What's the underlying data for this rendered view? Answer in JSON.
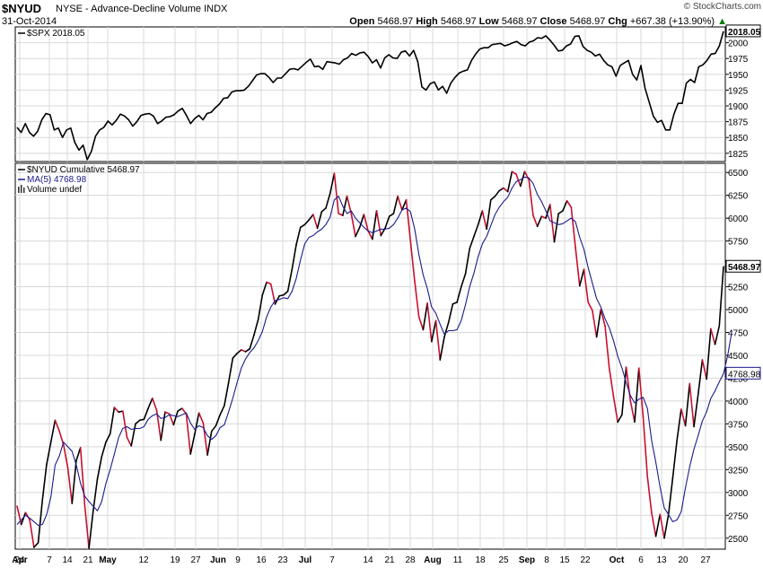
{
  "header": {
    "symbol": "$NYUD",
    "description": "NYSE - Advance-Decline Volume INDX",
    "date": "31-Oct-2014",
    "open_label": "Open",
    "open": "5468.97",
    "high_label": "High",
    "high": "5468.97",
    "low_label": "Low",
    "low": "5468.97",
    "close_label": "Close",
    "close": "5468.97",
    "chg_label": "Chg",
    "chg": "+667.38 (+13.90%)",
    "chg_arrow": "▲",
    "brand": "© StockCharts.com"
  },
  "colors": {
    "price_line": "#000000",
    "decline_segment": "#c8102e",
    "ma_line": "#1a1a8c",
    "grid": "#d8d8d8",
    "chg_up": "#008000"
  },
  "chart_data": [
    {
      "type": "line",
      "panel": "upper",
      "legend": [
        "$SPX 2018.05"
      ],
      "last_value_label": "2018.05",
      "ylim": [
        1812,
        2025
      ],
      "yticks": [
        1825,
        1850,
        1875,
        1900,
        1925,
        1950,
        1975,
        2000
      ],
      "x_ticks": [
        "24",
        "Apr",
        "7",
        "14",
        "21",
        "May",
        "12",
        "19",
        "27",
        "Jun",
        "9",
        "16",
        "23",
        "Jul",
        "7",
        "14",
        "21",
        "28",
        "Aug",
        "11",
        "18",
        "25",
        "Sep",
        "8",
        "15",
        "22",
        "Oct",
        "6",
        "13",
        "20",
        "27"
      ],
      "series": [
        {
          "name": "$SPX",
          "values": [
            1866,
            1858,
            1872,
            1858,
            1852,
            1860,
            1878,
            1888,
            1886,
            1862,
            1865,
            1850,
            1862,
            1865,
            1842,
            1830,
            1838,
            1815,
            1828,
            1852,
            1862,
            1866,
            1876,
            1870,
            1877,
            1887,
            1884,
            1878,
            1868,
            1875,
            1885,
            1887,
            1888,
            1884,
            1872,
            1876,
            1882,
            1883,
            1886,
            1892,
            1896,
            1885,
            1872,
            1880,
            1885,
            1878,
            1888,
            1890,
            1897,
            1903,
            1912,
            1913,
            1922,
            1924,
            1924,
            1925,
            1931,
            1940,
            1949,
            1951,
            1951,
            1945,
            1937,
            1944,
            1944,
            1951,
            1958,
            1959,
            1957,
            1963,
            1969,
            1974,
            1962,
            1963,
            1958,
            1970,
            1969,
            1968,
            1966,
            1973,
            1976,
            1983,
            1980,
            1984,
            1985,
            1978,
            1968,
            1973,
            1960,
            1976,
            1981,
            1976,
            1975,
            1985,
            1987,
            1979,
            1988,
            1970,
            1930,
            1925,
            1935,
            1938,
            1925,
            1931,
            1920,
            1936,
            1945,
            1952,
            1955,
            1957,
            1972,
            1982,
            1990,
            1992,
            1992,
            1997,
            1998,
            1999,
            1995,
            1997,
            2000,
            2002,
            1997,
            1995,
            2001,
            2003,
            2008,
            2007,
            2011,
            2004,
            1996,
            1987,
            1988,
            1995,
            1998,
            2010,
            2011,
            1994,
            1988,
            1985,
            1979,
            1982,
            1972,
            1965,
            1962,
            1947,
            1964,
            1968,
            1972,
            1950,
            1941,
            1964,
            1928,
            1906,
            1884,
            1874,
            1877,
            1862,
            1862,
            1887,
            1904,
            1904,
            1936,
            1942,
            1937,
            1962,
            1965,
            1972,
            1982,
            1983,
            1995,
            2018
          ]
        }
      ]
    },
    {
      "type": "line",
      "panel": "lower",
      "legend": [
        "$NYUD Cumulative 5468.97",
        "MA(5) 4768.98",
        "Volume undef"
      ],
      "last_value_label": "5468.97",
      "ma_value_label": "4768.98",
      "ylim": [
        2380,
        6600
      ],
      "yticks": [
        2500,
        2750,
        3000,
        3250,
        3500,
        3750,
        4000,
        4250,
        4500,
        4750,
        5000,
        5250,
        5500,
        5750,
        6000,
        6250,
        6500
      ],
      "x_ticks": [
        "24",
        "Apr",
        "7",
        "14",
        "21",
        "May",
        "12",
        "19",
        "27",
        "Jun",
        "9",
        "16",
        "23",
        "Jul",
        "7",
        "14",
        "21",
        "28",
        "Aug",
        "11",
        "18",
        "25",
        "Sep",
        "8",
        "15",
        "22",
        "Oct",
        "6",
        "13",
        "20",
        "27"
      ],
      "series": [
        {
          "name": "$NYUD Cumulative",
          "values": [
            2850,
            2650,
            2780,
            2700,
            2400,
            2450,
            2920,
            3310,
            3550,
            3790,
            3670,
            3520,
            3270,
            2880,
            3350,
            3490,
            2860,
            2390,
            2800,
            3150,
            3390,
            3550,
            3640,
            3930,
            3880,
            3890,
            3600,
            3510,
            3750,
            3790,
            3800,
            3920,
            4030,
            3900,
            3570,
            3880,
            3860,
            3740,
            3890,
            3920,
            3860,
            3420,
            3640,
            3870,
            3760,
            3410,
            3670,
            3730,
            3850,
            3950,
            4200,
            4470,
            4520,
            4560,
            4540,
            4570,
            4720,
            4890,
            5160,
            5300,
            5280,
            5060,
            5150,
            5160,
            5200,
            5440,
            5710,
            5900,
            5930,
            5980,
            6040,
            5890,
            6070,
            6110,
            6270,
            6490,
            6050,
            6030,
            6240,
            6050,
            5800,
            5900,
            6040,
            5860,
            5770,
            6080,
            5810,
            5890,
            6020,
            6050,
            6240,
            6090,
            6200,
            5750,
            5310,
            4920,
            4780,
            5070,
            4650,
            4880,
            4450,
            4700,
            4860,
            5060,
            5080,
            5250,
            5390,
            5670,
            5800,
            5930,
            6080,
            5880,
            6200,
            6240,
            6300,
            6330,
            6290,
            6510,
            6480,
            6350,
            6510,
            6420,
            6030,
            5910,
            6020,
            6000,
            6150,
            5740,
            6050,
            6080,
            6190,
            6120,
            5680,
            5260,
            5440,
            5080,
            4990,
            4700,
            5000,
            4820,
            4360,
            4050,
            3770,
            3850,
            4370,
            4000,
            3770,
            4360,
            3830,
            3180,
            2780,
            2520,
            2760,
            2500,
            2760,
            3160,
            3570,
            3910,
            3730,
            4190,
            3720,
            4070,
            4450,
            4240,
            4790,
            4620,
            4820,
            5469
          ]
        },
        {
          "name": "MA(5)",
          "values": [
            2650,
            2700,
            2750,
            2720,
            2680,
            2640,
            2650,
            2760,
            2950,
            3300,
            3400,
            3550,
            3500,
            3450,
            3300,
            3100,
            2960,
            2900,
            2850,
            2800,
            2900,
            3100,
            3250,
            3420,
            3600,
            3700,
            3720,
            3690,
            3700,
            3700,
            3720,
            3800,
            3840,
            3860,
            3810,
            3820,
            3850,
            3840,
            3830,
            3850,
            3870,
            3760,
            3690,
            3730,
            3710,
            3620,
            3580,
            3620,
            3710,
            3740,
            3880,
            4030,
            4200,
            4360,
            4460,
            4530,
            4580,
            4660,
            4760,
            4920,
            5030,
            5100,
            5110,
            5130,
            5120,
            5200,
            5340,
            5540,
            5720,
            5790,
            5810,
            5850,
            5880,
            5930,
            6010,
            6200,
            6240,
            6130,
            6050,
            6080,
            6000,
            5950,
            5900,
            5860,
            5840,
            5860,
            5880,
            5880,
            5890,
            5930,
            6000,
            6090,
            6110,
            6070,
            5880,
            5600,
            5380,
            5230,
            5030,
            4960,
            4840,
            4730,
            4770,
            4770,
            4780,
            4880,
            5050,
            5250,
            5400,
            5580,
            5720,
            5800,
            5920,
            6040,
            6120,
            6180,
            6230,
            6330,
            6400,
            6420,
            6450,
            6440,
            6380,
            6260,
            6180,
            6080,
            5970,
            5950,
            5930,
            5940,
            5970,
            6000,
            5960,
            5790,
            5660,
            5460,
            5290,
            5120,
            5030,
            4900,
            4800,
            4660,
            4490,
            4360,
            4200,
            4060,
            3980,
            4020,
            4040,
            3920,
            3570,
            3330,
            3060,
            2830,
            2760,
            2680,
            2700,
            2790,
            3050,
            3280,
            3470,
            3620,
            3780,
            3880,
            4030,
            4110,
            4210,
            4300,
            4500,
            4769
          ]
        }
      ]
    }
  ]
}
